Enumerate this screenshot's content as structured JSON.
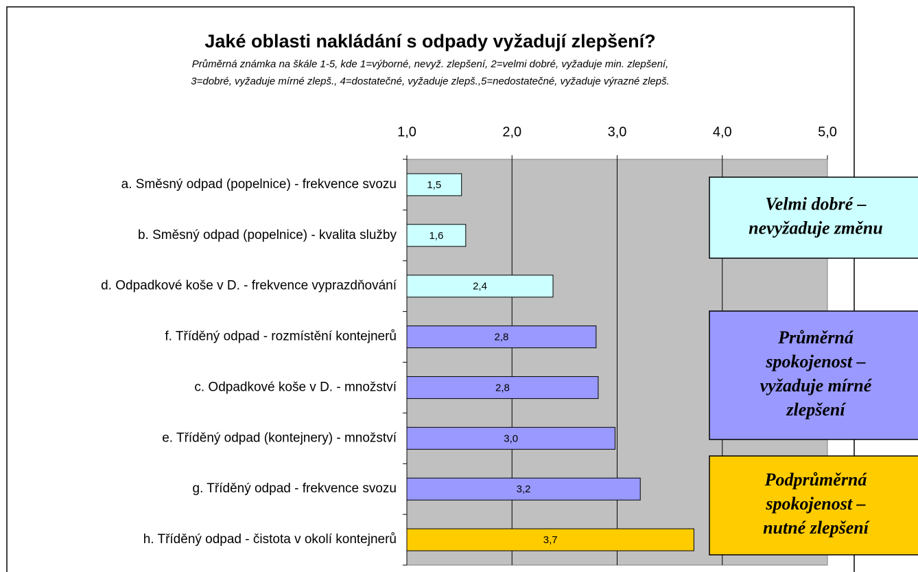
{
  "chart_data": {
    "type": "hbar",
    "title": "Jaké oblasti nakládání s odpady vyžadují zlepšení?",
    "subtitle": [
      "Průměrná známka na škále 1-5, kde 1=výborné, nevyž. zlepšení, 2=velmi dobré, vyžaduje min. zlepšení,",
      "3=dobré, vyžaduje mírné zlepš., 4=dostatečné, vyžaduje zlepš.,5=nedostatečné, vyžaduje výrazné zlepš."
    ],
    "categories": [
      "a. Směsný odpad (popelnice) - frekvence svozu",
      "b. Směsný odpad (popelnice) - kvalita služby",
      "d. Odpadkové koše v D. - frekvence vyprazdňování",
      "f. Tříděný odpad - rozmístění kontejnerů",
      "c. Odpadkové koše v D. - množství",
      "e. Tříděný odpad (kontejnery) - množství",
      "g. Tříděný odpad - frekvence svozu",
      "h. Tříděný odpad - čistota v okolí kontejnerů"
    ],
    "values": [
      1.52,
      1.56,
      2.39,
      2.8,
      2.82,
      2.98,
      3.22,
      3.73
    ],
    "value_labels": [
      "1,5",
      "1,6",
      "2,4",
      "2,8",
      "2,8",
      "3,0",
      "3,2",
      "3,7"
    ],
    "colors": [
      "#ccffff",
      "#ccffff",
      "#ccffff",
      "#9999ff",
      "#9999ff",
      "#9999ff",
      "#9999ff",
      "#ffcc00"
    ],
    "xlim": [
      1,
      5
    ],
    "xticks": [
      {
        "value": 1,
        "label": "1,0"
      },
      {
        "value": 2,
        "label": "2,0"
      },
      {
        "value": 3,
        "label": "3,0"
      },
      {
        "value": 4,
        "label": "4,0"
      },
      {
        "value": 5,
        "label": "5,0"
      }
    ],
    "grid": true,
    "plot_background": "#c0c0c0",
    "annotations": [
      {
        "lines": [
          "Velmi dobré –",
          "nevyžaduje změnu"
        ],
        "color": "#ccffff"
      },
      {
        "lines": [
          "Průměrná",
          "spokojenost –",
          "vyžaduje mírné",
          "zlepšení"
        ],
        "color": "#9999ff"
      },
      {
        "lines": [
          "Podprůměrná",
          "spokojenost –",
          "nutné zlepšení"
        ],
        "color": "#ffcc00"
      }
    ]
  }
}
